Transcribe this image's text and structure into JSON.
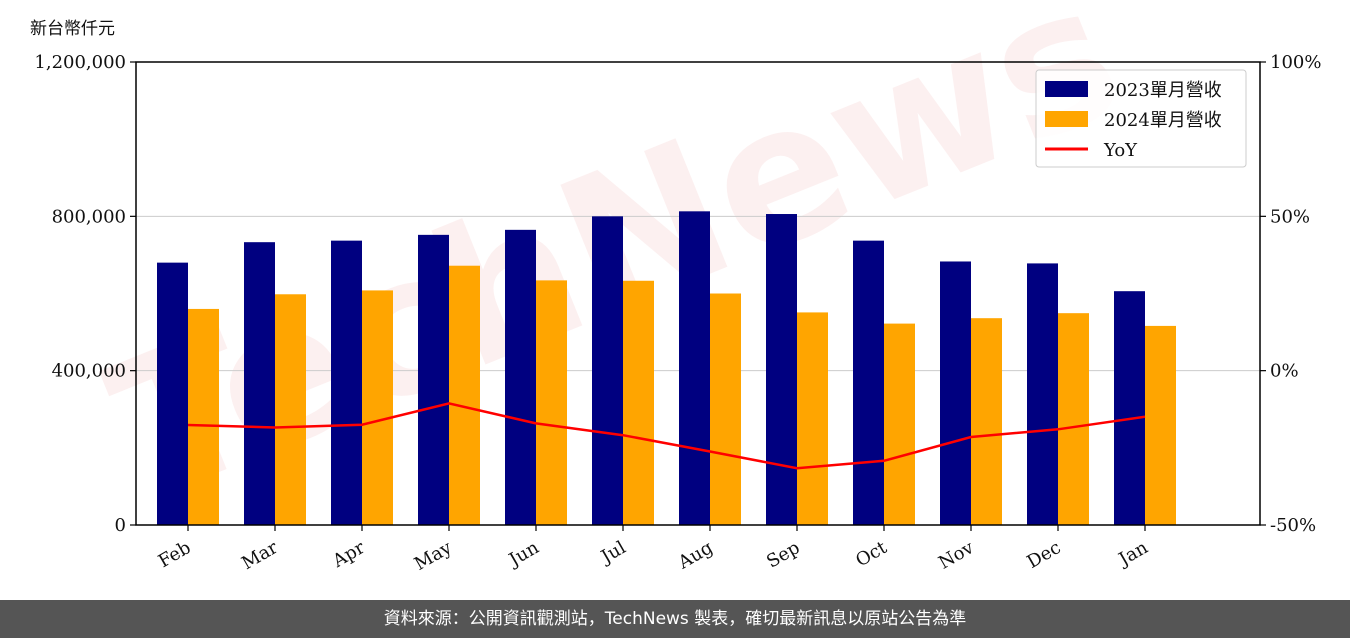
{
  "unit_label": "新台幣仟元",
  "footer": "資料來源：公開資訊觀測站，TechNews 製表，確切最新訊息以原站公告為準",
  "watermark": "TechNews",
  "chart_data": {
    "type": "bar",
    "categories": [
      "Feb",
      "Mar",
      "Apr",
      "May",
      "Jun",
      "Jul",
      "Aug",
      "Sep",
      "Oct",
      "Nov",
      "Dec",
      "Jan"
    ],
    "series": [
      {
        "name": "2023單月營收",
        "kind": "bar",
        "axis": "left",
        "color": "#000080",
        "values": [
          680000,
          733000,
          737000,
          752000,
          765000,
          800000,
          813000,
          806000,
          737000,
          683000,
          678000,
          606000
        ]
      },
      {
        "name": "2024單月營收",
        "kind": "bar",
        "axis": "left",
        "color": "#ffa500",
        "values": [
          560000,
          598000,
          608000,
          672000,
          634000,
          633000,
          600000,
          551000,
          522000,
          536000,
          549000,
          516000
        ]
      },
      {
        "name": "YoY",
        "kind": "line",
        "axis": "right",
        "color": "#ff0000",
        "values": [
          -17.6,
          -18.4,
          -17.5,
          -10.6,
          -17.1,
          -20.9,
          -26.2,
          -31.6,
          -29.2,
          -21.5,
          -19.0,
          -14.9
        ]
      }
    ],
    "ylim_left": [
      0,
      1200000
    ],
    "yticks_left": [
      "0",
      "400,000",
      "800,000",
      "1,200,000"
    ],
    "ylim_right": [
      -50,
      100
    ],
    "yticks_right": [
      "-50%",
      "0%",
      "50%",
      "100%"
    ],
    "grid": "horizontal",
    "legend": "top-right"
  }
}
